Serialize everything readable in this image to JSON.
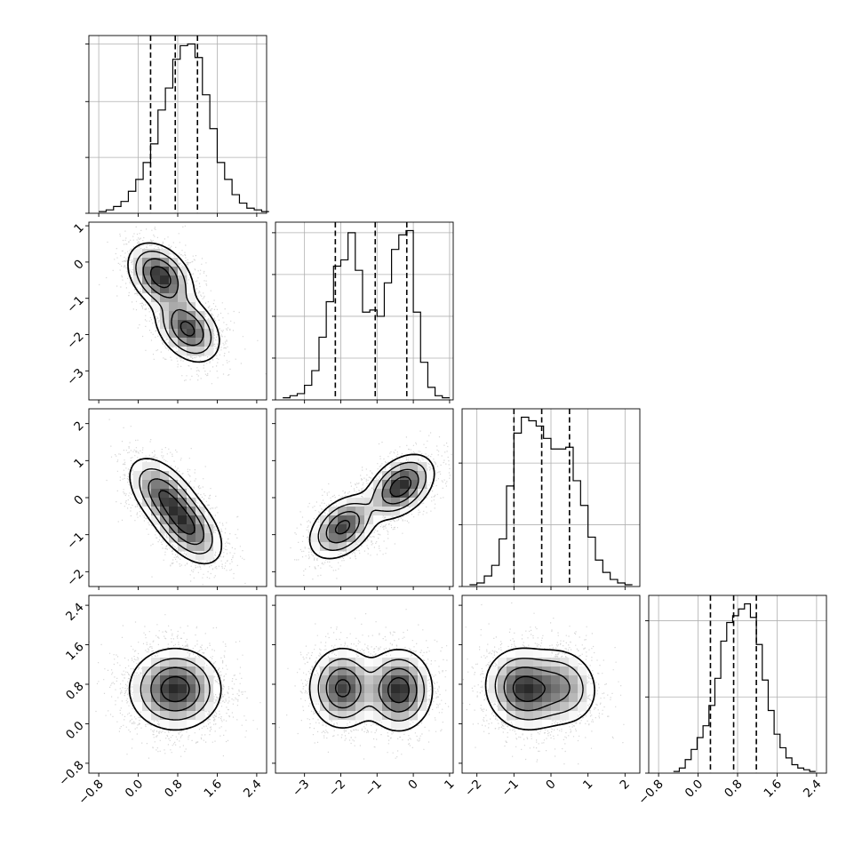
{
  "chart_data": {
    "type": "corner",
    "n_params": 4,
    "params": [
      {
        "index": 0,
        "range": [
          -1.0,
          2.6
        ],
        "ticks": [
          -0.8,
          0.0,
          0.8,
          1.6,
          2.4
        ],
        "tick_labels": [
          "−0.8",
          "0.0",
          "0.8",
          "1.6",
          "2.4"
        ],
        "quantiles": [
          0.25,
          0.75,
          1.2
        ],
        "hist": {
          "bin_width": 0.15,
          "start": -0.8,
          "counts": [
            1,
            2,
            4,
            7,
            13,
            20,
            30,
            41,
            61,
            74,
            91,
            99,
            100,
            92,
            70,
            50,
            30,
            20,
            11,
            6,
            3,
            2,
            1
          ]
        },
        "hist_ticks": [
          0,
          33,
          66,
          100
        ]
      },
      {
        "index": 1,
        "range": [
          -3.8,
          1.1
        ],
        "ticks": [
          -3,
          -2,
          -1,
          0,
          1
        ],
        "tick_labels": [
          "−3",
          "−2",
          "−1",
          "0",
          "1"
        ],
        "quantiles": [
          -2.15,
          -1.05,
          -0.18
        ],
        "hist": {
          "bin_width": 0.2,
          "start": -3.6,
          "counts": [
            1,
            2,
            3,
            7,
            14,
            30,
            47,
            64,
            67,
            80,
            62,
            42,
            43,
            40,
            56,
            72,
            79,
            81,
            42,
            18,
            6,
            2,
            1
          ]
        },
        "hist_ticks": [
          0,
          20,
          40,
          60,
          80
        ]
      },
      {
        "index": 2,
        "range": [
          -2.4,
          2.4
        ],
        "ticks": [
          -2,
          -1,
          0,
          1,
          2
        ],
        "tick_labels": [
          "−2",
          "−1",
          "0",
          "1",
          "2"
        ],
        "quantiles": [
          -1.0,
          -0.25,
          0.5
        ],
        "hist": {
          "bin_width": 0.2,
          "start": -2.2,
          "counts": [
            1,
            2,
            6,
            12,
            27,
            57,
            87,
            96,
            94,
            91,
            84,
            78,
            78,
            79,
            60,
            46,
            28,
            15,
            8,
            4,
            2,
            1
          ]
        },
        "hist_ticks": [
          0,
          35,
          70,
          105
        ]
      },
      {
        "index": 3,
        "range": [
          -1.0,
          2.6
        ],
        "ticks": [
          -0.8,
          0.0,
          0.8,
          1.6,
          2.4
        ],
        "tick_labels": [
          "−0.8",
          "0.0",
          "0.8",
          "1.6",
          "2.4"
        ],
        "quantiles": [
          0.25,
          0.72,
          1.18
        ],
        "hist": {
          "bin_width": 0.12,
          "start": -0.5,
          "counts": [
            1,
            3,
            8,
            14,
            21,
            28,
            40,
            56,
            78,
            89,
            93,
            97,
            100,
            92,
            76,
            55,
            37,
            23,
            15,
            9,
            5,
            3,
            2,
            1
          ]
        },
        "hist_ticks": [
          0,
          45,
          90
        ]
      }
    ],
    "correlations": {
      "1,0": {
        "modes": [
          {
            "x": 0.45,
            "y": -0.4,
            "w": 1.0
          },
          {
            "x": 1.0,
            "y": -1.85,
            "w": 0.9
          }
        ],
        "sx": 0.32,
        "sy": 0.45,
        "rho": -0.35
      },
      "2,0": {
        "modes": [
          {
            "x": 0.5,
            "y": 0.1,
            "w": 0.9
          },
          {
            "x": 1.0,
            "y": -0.8,
            "w": 1.0
          }
        ],
        "sx": 0.35,
        "sy": 0.5,
        "rho": -0.5
      },
      "2,1": {
        "modes": [
          {
            "x": -1.95,
            "y": -0.8,
            "w": 0.9
          },
          {
            "x": -0.35,
            "y": 0.3,
            "w": 1.0
          }
        ],
        "sx": 0.45,
        "sy": 0.42,
        "rho": 0.4
      },
      "3,0": {
        "modes": [
          {
            "x": 0.75,
            "y": 0.7,
            "w": 1.0
          }
        ],
        "sx": 0.45,
        "sy": 0.4,
        "rho": 0.0
      },
      "3,1": {
        "modes": [
          {
            "x": -1.95,
            "y": 0.72,
            "w": 0.9
          },
          {
            "x": -0.4,
            "y": 0.68,
            "w": 1.0
          }
        ],
        "sx": 0.45,
        "sy": 0.4,
        "rho": 0.0
      },
      "3,2": {
        "modes": [
          {
            "x": -0.75,
            "y": 0.7,
            "w": 1.0
          },
          {
            "x": 0.3,
            "y": 0.75,
            "w": 0.6
          }
        ],
        "sx": 0.5,
        "sy": 0.4,
        "rho": -0.1
      }
    },
    "grid": true,
    "colors": {
      "line": "#000000",
      "grid": "#b0b0b0",
      "density": "#000000"
    }
  }
}
